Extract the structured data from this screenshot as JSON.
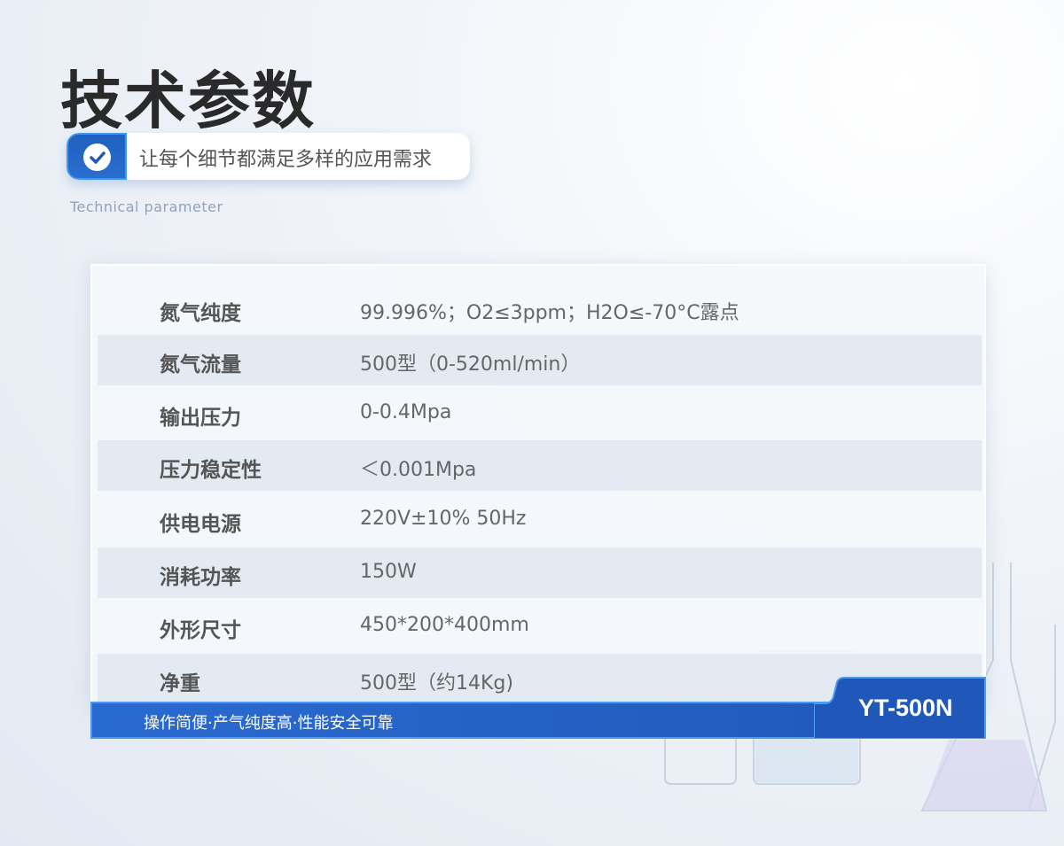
{
  "header": {
    "title": "技术参数",
    "tagline": "让每个细节都满足多样的应用需求",
    "subtitle": "Technical parameter",
    "icon": "check-circle-icon"
  },
  "specs": [
    {
      "label": "氮气纯度",
      "value": "99.996%；O2≤3ppm；H2O≤-70°C露点"
    },
    {
      "label": "氮气流量",
      "value": "500型（0-520ml/min）"
    },
    {
      "label": "输出压力",
      "value": "0-0.4Mpa"
    },
    {
      "label": "压力稳定性",
      "value": "＜0.001Mpa"
    },
    {
      "label": "供电电源",
      "value": "220V±10%  50Hz"
    },
    {
      "label": "消耗功率",
      "value": "150W"
    },
    {
      "label": "外形尺寸",
      "value": "450*200*400mm"
    },
    {
      "label": "净重",
      "value": "500型（约14Kg)"
    }
  ],
  "footer": {
    "slogan": "操作简便·产气纯度高·性能安全可靠",
    "model": "YT-500N"
  },
  "colors": {
    "accent": "#1f58b8",
    "accent_border": "#4a9af0"
  }
}
